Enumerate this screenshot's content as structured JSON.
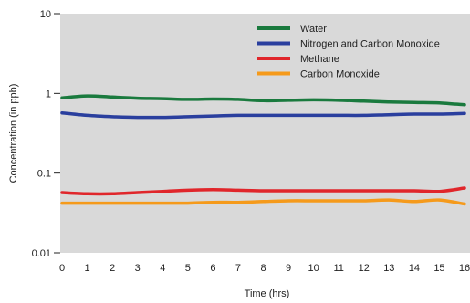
{
  "chart_data": {
    "type": "line",
    "title": "",
    "xlabel": "Time (hrs)",
    "ylabel": "Concentration (in ppb)",
    "yscale": "log",
    "ylim": [
      0.01,
      10
    ],
    "xlim": [
      0,
      16
    ],
    "grid": false,
    "legend_position": "top-right",
    "x_ticks": [
      0,
      1,
      2,
      3,
      4,
      5,
      6,
      7,
      8,
      9,
      10,
      11,
      12,
      13,
      14,
      15,
      16
    ],
    "y_ticks": [
      {
        "value": 10,
        "label": "10"
      },
      {
        "value": 1,
        "label": "1"
      },
      {
        "value": 0.1,
        "label": "0.1"
      },
      {
        "value": 0.01,
        "label": "0.01"
      }
    ],
    "x": [
      0,
      1,
      2,
      3,
      4,
      5,
      6,
      7,
      8,
      9,
      10,
      11,
      12,
      13,
      14,
      15,
      16
    ],
    "series": [
      {
        "name": "Water",
        "color": "#1a7a3e",
        "values": [
          0.88,
          0.93,
          0.9,
          0.87,
          0.86,
          0.84,
          0.85,
          0.84,
          0.81,
          0.82,
          0.83,
          0.82,
          0.8,
          0.78,
          0.77,
          0.76,
          0.72
        ]
      },
      {
        "name": "Nitrogen and Carbon Monoxide",
        "color": "#2a3f9e",
        "values": [
          0.57,
          0.53,
          0.51,
          0.5,
          0.5,
          0.51,
          0.52,
          0.53,
          0.53,
          0.53,
          0.53,
          0.53,
          0.53,
          0.54,
          0.55,
          0.55,
          0.56
        ]
      },
      {
        "name": "Methane",
        "color": "#e0262b",
        "values": [
          0.057,
          0.055,
          0.055,
          0.057,
          0.059,
          0.061,
          0.062,
          0.061,
          0.06,
          0.06,
          0.06,
          0.06,
          0.06,
          0.06,
          0.06,
          0.059,
          0.065
        ]
      },
      {
        "name": "Carbon Monoxide",
        "color": "#f59a1b",
        "values": [
          0.042,
          0.042,
          0.042,
          0.042,
          0.042,
          0.042,
          0.043,
          0.043,
          0.044,
          0.045,
          0.045,
          0.045,
          0.045,
          0.046,
          0.044,
          0.046,
          0.041
        ]
      }
    ],
    "background_color": "#d9d9d9"
  }
}
